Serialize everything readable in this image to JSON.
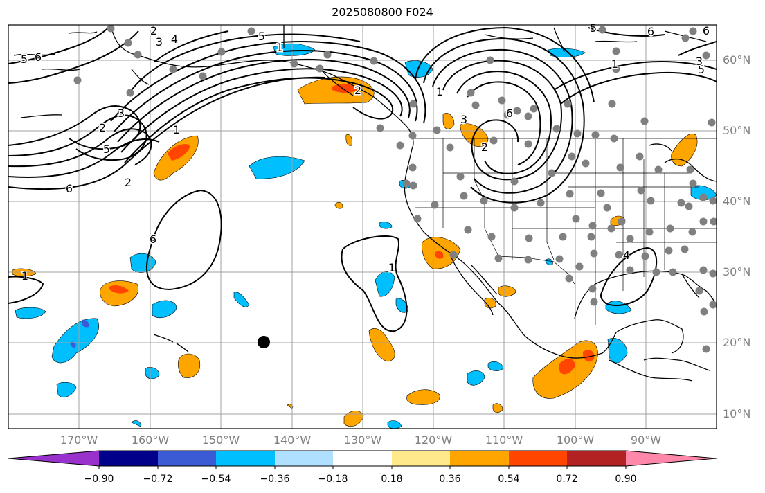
{
  "title": "2025080800 F024",
  "colors": {
    "background": "#ffffff",
    "grid": "#a0a0a0",
    "coast": "#000000",
    "contour": "#000000",
    "station": "#808080"
  },
  "map": {
    "lat_labels": [
      "60°N",
      "50°N",
      "40°N",
      "30°N",
      "20°N",
      "10°N"
    ],
    "lon_labels": [
      "170°W",
      "160°W",
      "150°W",
      "140°W",
      "130°W",
      "120°W",
      "110°W",
      "100°W",
      "90°W"
    ],
    "contour_labels": [
      "2",
      "3",
      "4",
      "5",
      "6",
      "1",
      "6",
      "5",
      "2",
      "3",
      "2",
      "1",
      "5",
      "6",
      "2",
      "1",
      "3",
      "6",
      "2",
      "5",
      "6",
      "1",
      "1",
      "1",
      "4",
      "6",
      "5",
      "3"
    ]
  },
  "colorbar": {
    "tick_labels": [
      "−0.90",
      "−0.72",
      "−0.54",
      "−0.36",
      "−0.18",
      "0.18",
      "0.36",
      "0.54",
      "0.72",
      "0.90"
    ],
    "colors": [
      "#9932cc",
      "#00008b",
      "#3a5bd4",
      "#00bfff",
      "#b0e0ff",
      "#ffffff",
      "#ffe98a",
      "#ffa500",
      "#ff4500",
      "#b22222",
      "#ff88aa"
    ]
  }
}
